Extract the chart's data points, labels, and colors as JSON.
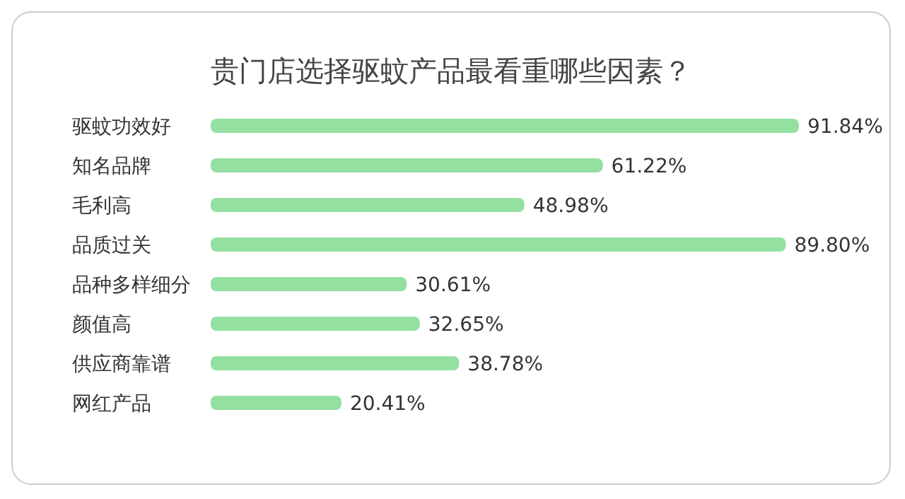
{
  "chart_data": {
    "type": "bar",
    "orientation": "horizontal",
    "title": "贵门店选择驱蚊产品最看重哪些因素？",
    "categories": [
      "驱蚊功效好",
      "知名品牌",
      "毛利高",
      "品质过关",
      "品种多样细分",
      "颜值高",
      "供应商靠谱",
      "网红产品"
    ],
    "values": [
      91.84,
      61.22,
      48.98,
      89.8,
      30.61,
      32.65,
      38.78,
      20.41
    ],
    "value_labels": [
      "91.84%",
      "61.22%",
      "48.98%",
      "89.80%",
      "30.61%",
      "32.65%",
      "38.78%",
      "20.41%"
    ],
    "color": "#94e0a0",
    "grid": false,
    "legend": false
  }
}
